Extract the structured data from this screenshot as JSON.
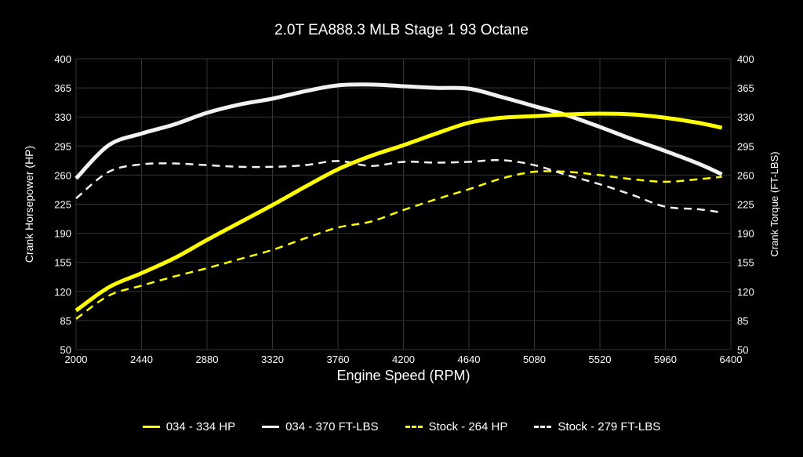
{
  "chart_data": {
    "type": "line",
    "title": "2.0T EA888.3 MLB Stage 1 93 Octane",
    "xlabel": "Engine Speed (RPM)",
    "ylabel": "Crank Horsepower (HP)",
    "y2label": "Crank Torque (FT-LBS)",
    "xlim": [
      2000,
      6400
    ],
    "ylim": [
      50,
      400
    ],
    "xticks": [
      2000,
      2440,
      2880,
      3320,
      3760,
      4200,
      4640,
      5080,
      5520,
      5960,
      6400
    ],
    "yticks": [
      50,
      85,
      120,
      155,
      190,
      225,
      260,
      295,
      330,
      365,
      400
    ],
    "grid": true,
    "legend_position": "bottom",
    "background": "#000000",
    "x": [
      2000,
      2220,
      2440,
      2660,
      2880,
      3100,
      3320,
      3540,
      3760,
      3980,
      4200,
      4420,
      4640,
      4860,
      5080,
      5300,
      5520,
      5740,
      5960,
      6180,
      6340
    ],
    "series": [
      {
        "name": "034 - 334 HP",
        "color": "#ffff00",
        "dashed": false,
        "values": [
          97,
          125,
          142,
          160,
          182,
          203,
          224,
          246,
          267,
          283,
          296,
          310,
          323,
          329,
          331,
          333,
          334,
          333,
          329,
          323,
          317
        ]
      },
      {
        "name": "034 - 370 FT-LBS",
        "color": "#f2f2f2",
        "dashed": false,
        "values": [
          256,
          296,
          310,
          321,
          335,
          345,
          352,
          361,
          368,
          369,
          367,
          365,
          364,
          354,
          343,
          332,
          318,
          303,
          289,
          274,
          261
        ]
      },
      {
        "name": "Stock - 264 HP",
        "color": "#ffff00",
        "dashed": true,
        "values": [
          87,
          115,
          127,
          138,
          148,
          159,
          170,
          184,
          197,
          204,
          218,
          231,
          243,
          256,
          264,
          264,
          260,
          255,
          252,
          255,
          258
        ]
      },
      {
        "name": "Stock - 279 FT-LBS",
        "color": "#f2f2f2",
        "dashed": true,
        "values": [
          232,
          264,
          273,
          274,
          272,
          270,
          270,
          272,
          277,
          271,
          276,
          275,
          276,
          278,
          272,
          260,
          249,
          236,
          222,
          219,
          215
        ]
      }
    ]
  }
}
